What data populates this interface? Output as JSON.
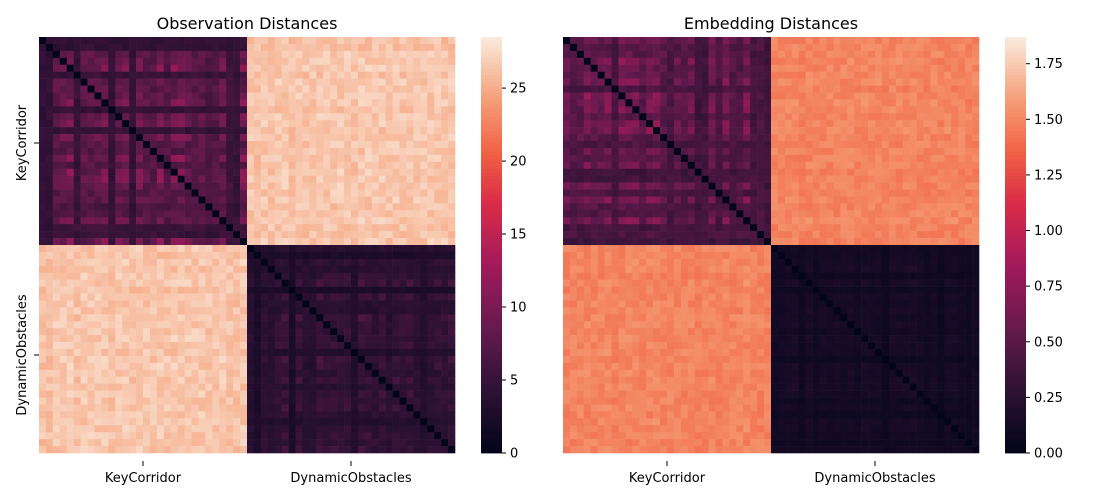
{
  "chart_data": [
    {
      "type": "heatmap",
      "title": "Observation Distances",
      "xlabel": "",
      "ylabel": "",
      "x_tick_labels": [
        "KeyCorridor",
        "DynamicObstacles"
      ],
      "y_tick_labels": [
        "KeyCorridor",
        "DynamicObstacles"
      ],
      "matrix_size": 60,
      "groups": [
        "KeyCorridor",
        "DynamicObstacles"
      ],
      "block_means": [
        [
          8.0,
          27.5
        ],
        [
          27.5,
          4.5
        ]
      ],
      "diagonal_value": 0,
      "colorbar": {
        "min": 0,
        "max": 28.5,
        "ticks": [
          0,
          5,
          10,
          15,
          20,
          25
        ],
        "tick_labels": [
          "0",
          "5",
          "10",
          "15",
          "20",
          "25"
        ]
      },
      "colormap": "rocket"
    },
    {
      "type": "heatmap",
      "title": "Embedding Distances",
      "xlabel": "",
      "ylabel": "",
      "x_tick_labels": [
        "KeyCorridor",
        "DynamicObstacles"
      ],
      "y_tick_labels": [],
      "matrix_size": 60,
      "groups": [
        "KeyCorridor",
        "DynamicObstacles"
      ],
      "block_means": [
        [
          0.6,
          1.55
        ],
        [
          1.55,
          0.12
        ]
      ],
      "diagonal_value": 0,
      "colorbar": {
        "min": 0,
        "max": 1.87,
        "ticks": [
          0,
          0.25,
          0.5,
          0.75,
          1.0,
          1.25,
          1.5,
          1.75
        ],
        "tick_labels": [
          "0.00",
          "0.25",
          "0.50",
          "0.75",
          "1.00",
          "1.25",
          "1.50",
          "1.75"
        ]
      },
      "colormap": "rocket"
    }
  ]
}
